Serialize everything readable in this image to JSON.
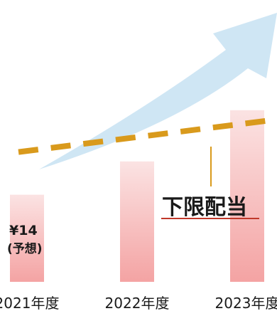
{
  "chart_data": {
    "type": "bar",
    "categories": [
      "2021年度",
      "2022年度",
      "2023年度"
    ],
    "values": [
      0.34,
      0.47,
      0.67
    ],
    "bar_value_annotations": [
      {
        "category": "2021年度",
        "value_label": "¥14",
        "note": "(予想)"
      }
    ],
    "reference_line": {
      "label": "下限配当",
      "style": "dashed",
      "color": "#D99A1C",
      "start": 0.34,
      "end": 0.56
    },
    "trend_arrow": {
      "direction": "up",
      "color": "#CFE6F4"
    },
    "colors": {
      "bar_top": "#FBE3E3",
      "bar_bottom": "#F4A3A3",
      "label_underline": "#C0392B"
    },
    "ylim": [
      0,
      1
    ]
  }
}
